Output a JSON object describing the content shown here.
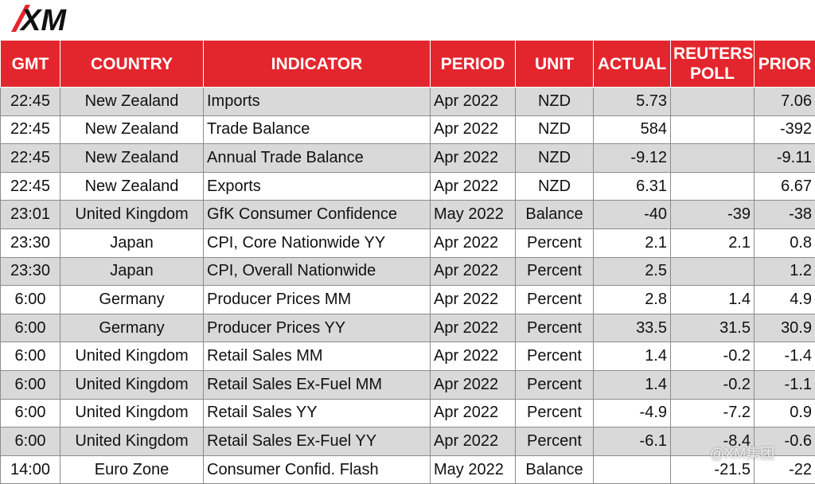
{
  "header": {
    "logo": "XM"
  },
  "table": {
    "columns": [
      "GMT",
      "COUNTRY",
      "INDICATOR",
      "PERIOD",
      "UNIT",
      "ACTUAL",
      "REUTERS POLL",
      "PRIOR"
    ],
    "rows": [
      [
        "22:45",
        "New Zealand",
        "Imports",
        "Apr 2022",
        "NZD",
        "5.73",
        null,
        "7.06"
      ],
      [
        "22:45",
        "New Zealand",
        "Trade Balance",
        "Apr 2022",
        "NZD",
        "584",
        null,
        "-392"
      ],
      [
        "22:45",
        "New Zealand",
        "Annual Trade Balance",
        "Apr 2022",
        "NZD",
        "-9.12",
        null,
        "-9.11"
      ],
      [
        "22:45",
        "New Zealand",
        "Exports",
        "Apr 2022",
        "NZD",
        "6.31",
        null,
        "6.67"
      ],
      [
        "23:01",
        "United Kingdom",
        "GfK Consumer Confidence",
        "May 2022",
        "Balance",
        "-40",
        "-39",
        "-38"
      ],
      [
        "23:30",
        "Japan",
        "CPI, Core Nationwide YY",
        "Apr 2022",
        "Percent",
        "2.1",
        "2.1",
        "0.8"
      ],
      [
        "23:30",
        "Japan",
        "CPI, Overall Nationwide",
        "Apr 2022",
        "Percent",
        "2.5",
        null,
        "1.2"
      ],
      [
        "6:00",
        "Germany",
        "Producer Prices MM",
        "Apr 2022",
        "Percent",
        "2.8",
        "1.4",
        "4.9"
      ],
      [
        "6:00",
        "Germany",
        "Producer Prices YY",
        "Apr 2022",
        "Percent",
        "33.5",
        "31.5",
        "30.9"
      ],
      [
        "6:00",
        "United Kingdom",
        "Retail Sales MM",
        "Apr 2022",
        "Percent",
        "1.4",
        "-0.2",
        "-1.4"
      ],
      [
        "6:00",
        "United Kingdom",
        "Retail Sales Ex-Fuel MM",
        "Apr 2022",
        "Percent",
        "1.4",
        "-0.2",
        "-1.1"
      ],
      [
        "6:00",
        "United Kingdom",
        "Retail Sales YY",
        "Apr 2022",
        "Percent",
        "-4.9",
        "-7.2",
        "0.9"
      ],
      [
        "6:00",
        "United Kingdom",
        "Retail Sales Ex-Fuel YY",
        "Apr 2022",
        "Percent",
        "-6.1",
        "-8.4",
        "-0.6"
      ],
      [
        "14:00",
        "Euro Zone",
        "Consumer Confid. Flash",
        "May 2022",
        "Balance",
        null,
        "-21.5",
        "-22"
      ]
    ]
  },
  "watermark": "@XM集团"
}
